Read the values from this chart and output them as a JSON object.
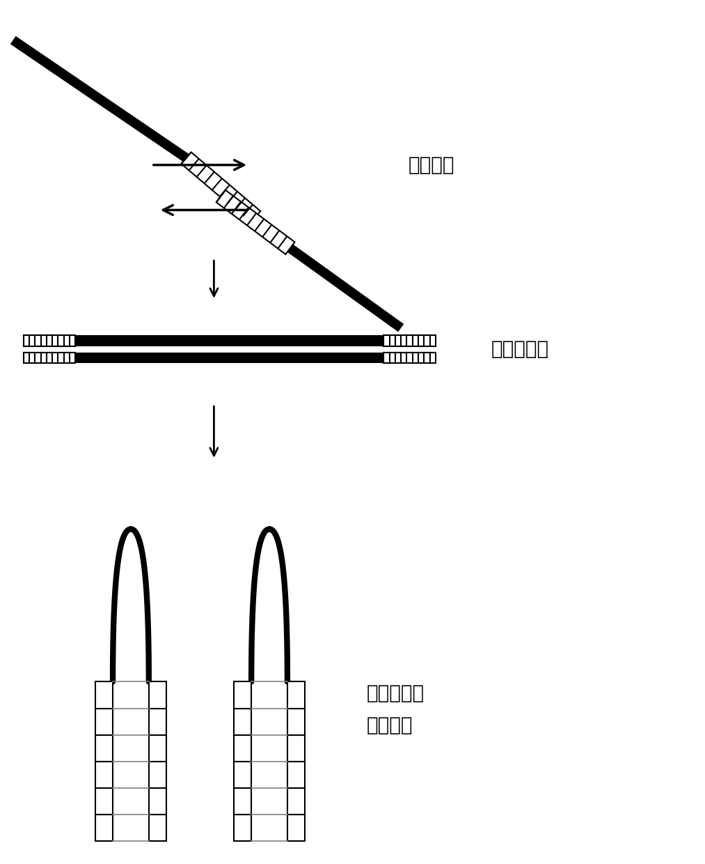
{
  "bg_color": "#ffffff",
  "label1": "引物互补",
  "label2": "引物二聚体",
  "label3": "引物二聚体\n颈环结构",
  "arrow_color": "#000000",
  "line_color": "#000000",
  "hatch_color": "#000000",
  "font_size": 20,
  "fig_width": 10.13,
  "fig_height": 12.4,
  "dpi": 100
}
